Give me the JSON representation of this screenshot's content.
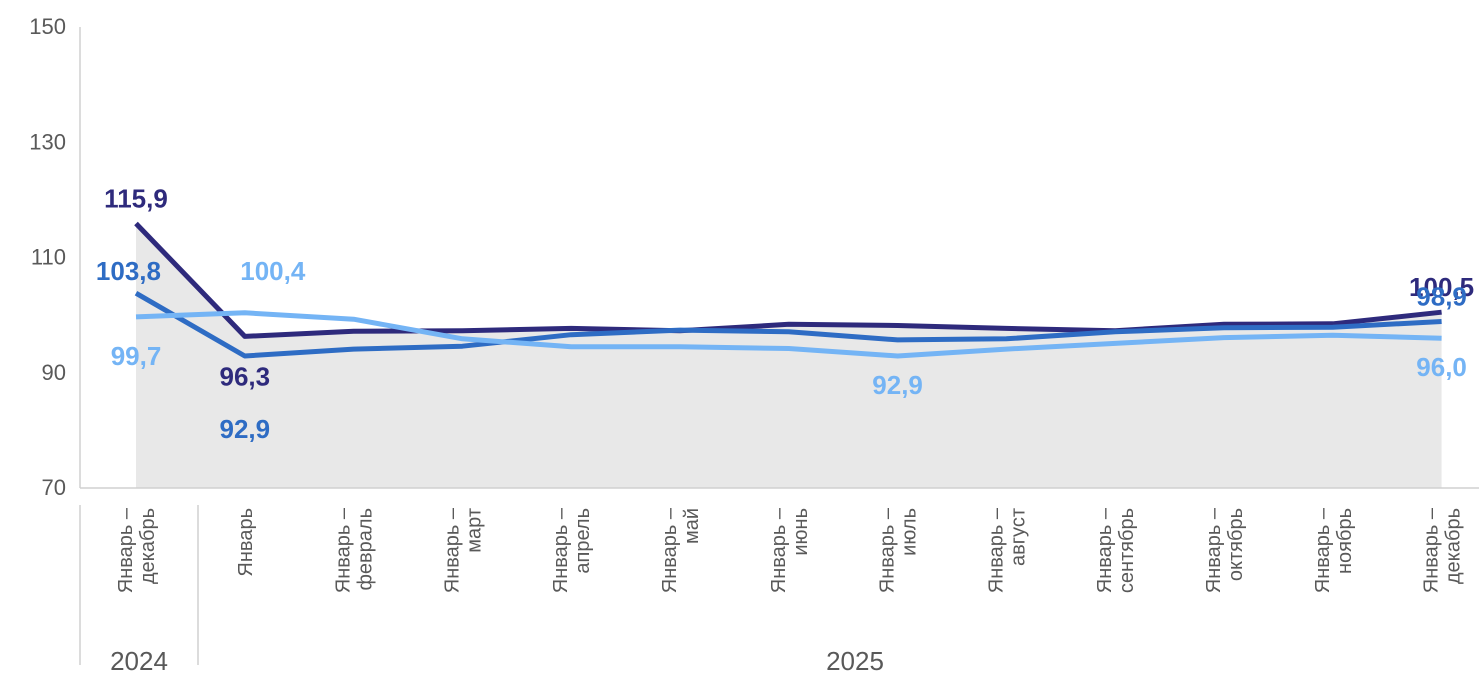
{
  "chart_data": {
    "type": "line",
    "title": "",
    "xlabel": "",
    "ylabel": "",
    "ylim": [
      70,
      150
    ],
    "yticks": [
      "70",
      "90",
      "110",
      "130",
      "150"
    ],
    "grid": false,
    "categories": [
      [
        "Январь –",
        "декабрь"
      ],
      [
        "Январь"
      ],
      [
        "Январь –",
        "февраль"
      ],
      [
        "Январь –",
        "март"
      ],
      [
        "Январь –",
        "апрель"
      ],
      [
        "Январь –",
        "май"
      ],
      [
        "Январь –",
        "июнь"
      ],
      [
        "Январь –",
        "июль"
      ],
      [
        "Январь –",
        "август"
      ],
      [
        "Январь –",
        "сентябрь"
      ],
      [
        "Январь –",
        "октябрь"
      ],
      [
        "Январь –",
        "ноябрь"
      ],
      [
        "Январь –",
        "декабрь"
      ]
    ],
    "year_groups": [
      {
        "label": "2024",
        "from": 0,
        "to": 0
      },
      {
        "label": "2025",
        "from": 1,
        "to": 12
      }
    ],
    "area": {
      "color": "#e8e8e8",
      "values": [
        115.9,
        96.3,
        97.2,
        97.3,
        97.7,
        97.3,
        98.4,
        98.2,
        97.7,
        97.3,
        98.4,
        98.5,
        100.5
      ]
    },
    "series": [
      {
        "color": "#2e2a7c",
        "values": [
          115.9,
          96.3,
          97.2,
          97.3,
          97.7,
          97.3,
          98.4,
          98.2,
          97.7,
          97.3,
          98.4,
          98.5,
          100.5
        ],
        "labels": [
          {
            "index": 0,
            "text": "115,9",
            "pos": "above"
          },
          {
            "index": 1,
            "text": "96,3",
            "pos": "below1"
          },
          {
            "index": 12,
            "text": "100,5",
            "pos": "above"
          }
        ]
      },
      {
        "color": "#2e6cc4",
        "values": [
          103.8,
          92.9,
          94.1,
          94.6,
          96.6,
          97.4,
          97.1,
          95.7,
          95.9,
          97.1,
          97.8,
          97.9,
          98.9
        ],
        "labels": [
          {
            "index": 0,
            "text": "103,8",
            "pos": "left"
          },
          {
            "index": 1,
            "text": "92,9",
            "pos": "below2"
          },
          {
            "index": 12,
            "text": "98,9",
            "pos": "above"
          }
        ]
      },
      {
        "color": "#74b4f5",
        "values": [
          99.7,
          100.4,
          99.3,
          95.9,
          94.5,
          94.5,
          94.2,
          92.9,
          94.1,
          95.1,
          96.1,
          96.5,
          96.0
        ],
        "labels": [
          {
            "index": 0,
            "text": "99,7",
            "pos": "below"
          },
          {
            "index": 1,
            "text": "100,4",
            "pos": "above"
          },
          {
            "index": 7,
            "text": "92,9",
            "pos": "below"
          },
          {
            "index": 12,
            "text": "96,0",
            "pos": "below"
          }
        ]
      }
    ]
  }
}
